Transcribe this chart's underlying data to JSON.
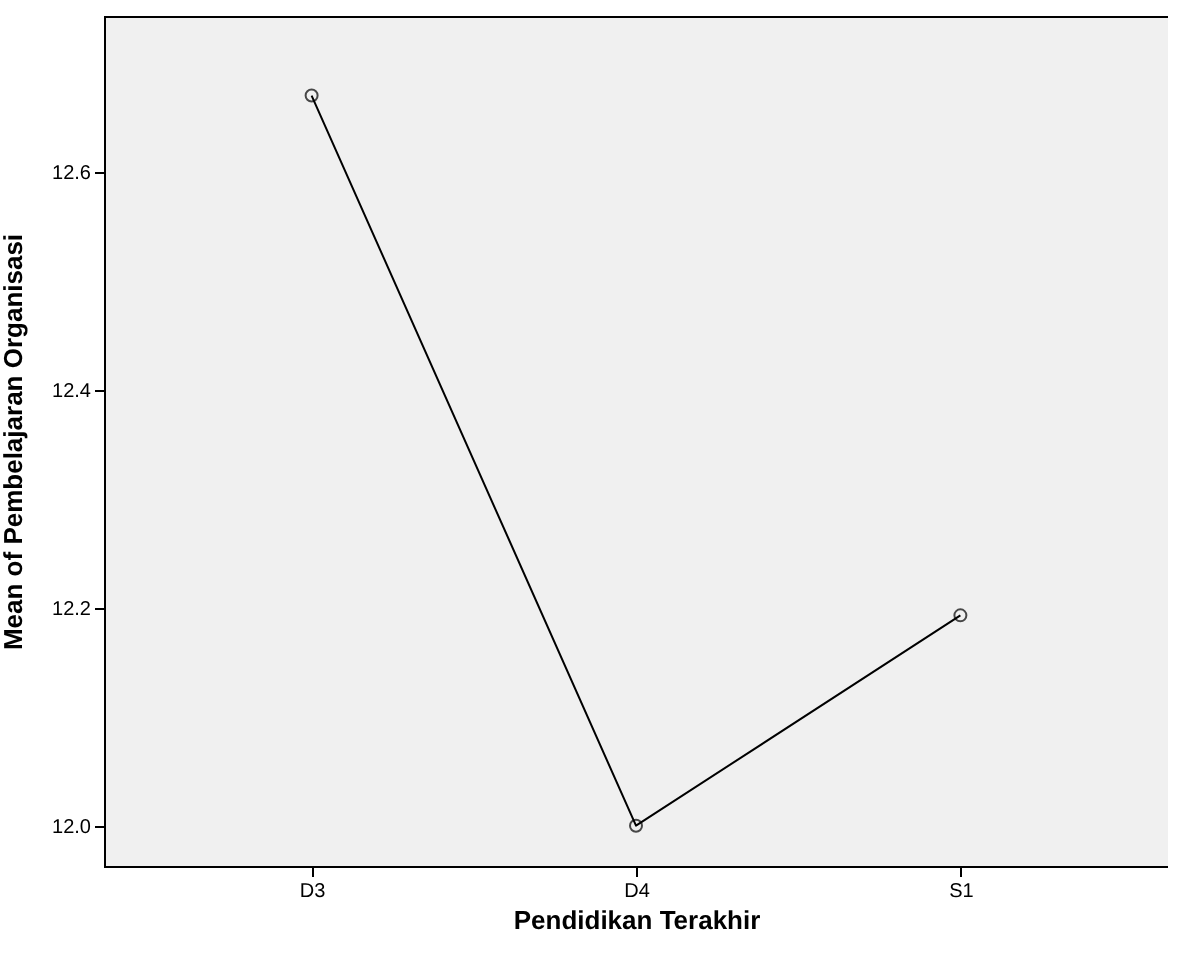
{
  "chart_data": {
    "type": "line",
    "xlabel": "Pendidikan Terakhir",
    "ylabel": "Mean of Pembelajaran Organisasi",
    "categories": [
      "D3",
      "D4",
      "S1"
    ],
    "series": [
      {
        "color": "#000000",
        "values": [
          12.67,
          12.0,
          12.193
        ]
      }
    ],
    "ylim": [
      11.963,
      12.743
    ],
    "yticks": [
      {
        "value": 12,
        "label": "12.0"
      },
      12.2,
      12.4,
      12.6
    ],
    "marker": "circle",
    "grid": false,
    "legend": false
  }
}
